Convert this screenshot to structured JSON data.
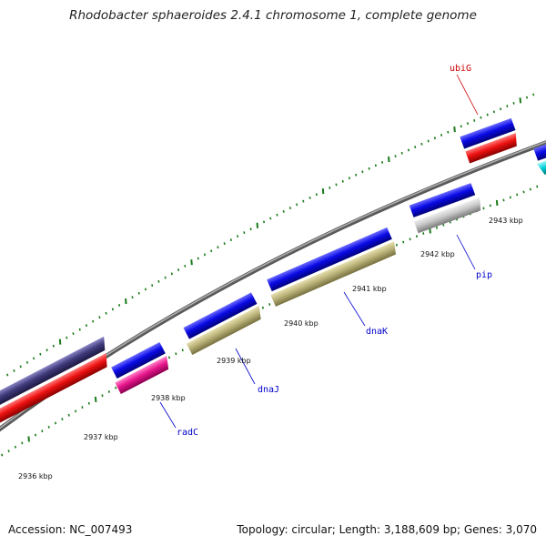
{
  "header": {
    "title": "Rhodobacter sphaeroides 2.4.1 chromosome 1, complete genome"
  },
  "footer": {
    "accession": "Accession: NC_007493",
    "summary": "Topology: circular; Length: 3,188,609 bp; Genes: 3,070"
  },
  "scale": {
    "ticks": [
      "2936 kbp",
      "2937 kbp",
      "2938 kbp",
      "2939 kbp",
      "2940 kbp",
      "2941 kbp",
      "2942 kbp",
      "2943 kbp"
    ]
  },
  "genes": [
    {
      "name": "radC",
      "color": "#0000cc"
    },
    {
      "name": "dnaJ",
      "color": "#0000cc"
    },
    {
      "name": "dnaK",
      "color": "#0000cc"
    },
    {
      "name": "pip",
      "color": "#0000cc"
    },
    {
      "name": "ubiG",
      "color": "#cc0000"
    }
  ],
  "colors": {
    "cds": "#0a0ae6",
    "feature_red": "#ee1111",
    "feature_magenta": "#e8168c",
    "feature_khaki": "#bcb37a",
    "feature_grey": "#c8c8c8",
    "feature_navy": "#3f3a7a",
    "feature_cyan": "#00d0d8",
    "backbone": "#8a8a8a",
    "ticks": "#1a7a1a"
  }
}
